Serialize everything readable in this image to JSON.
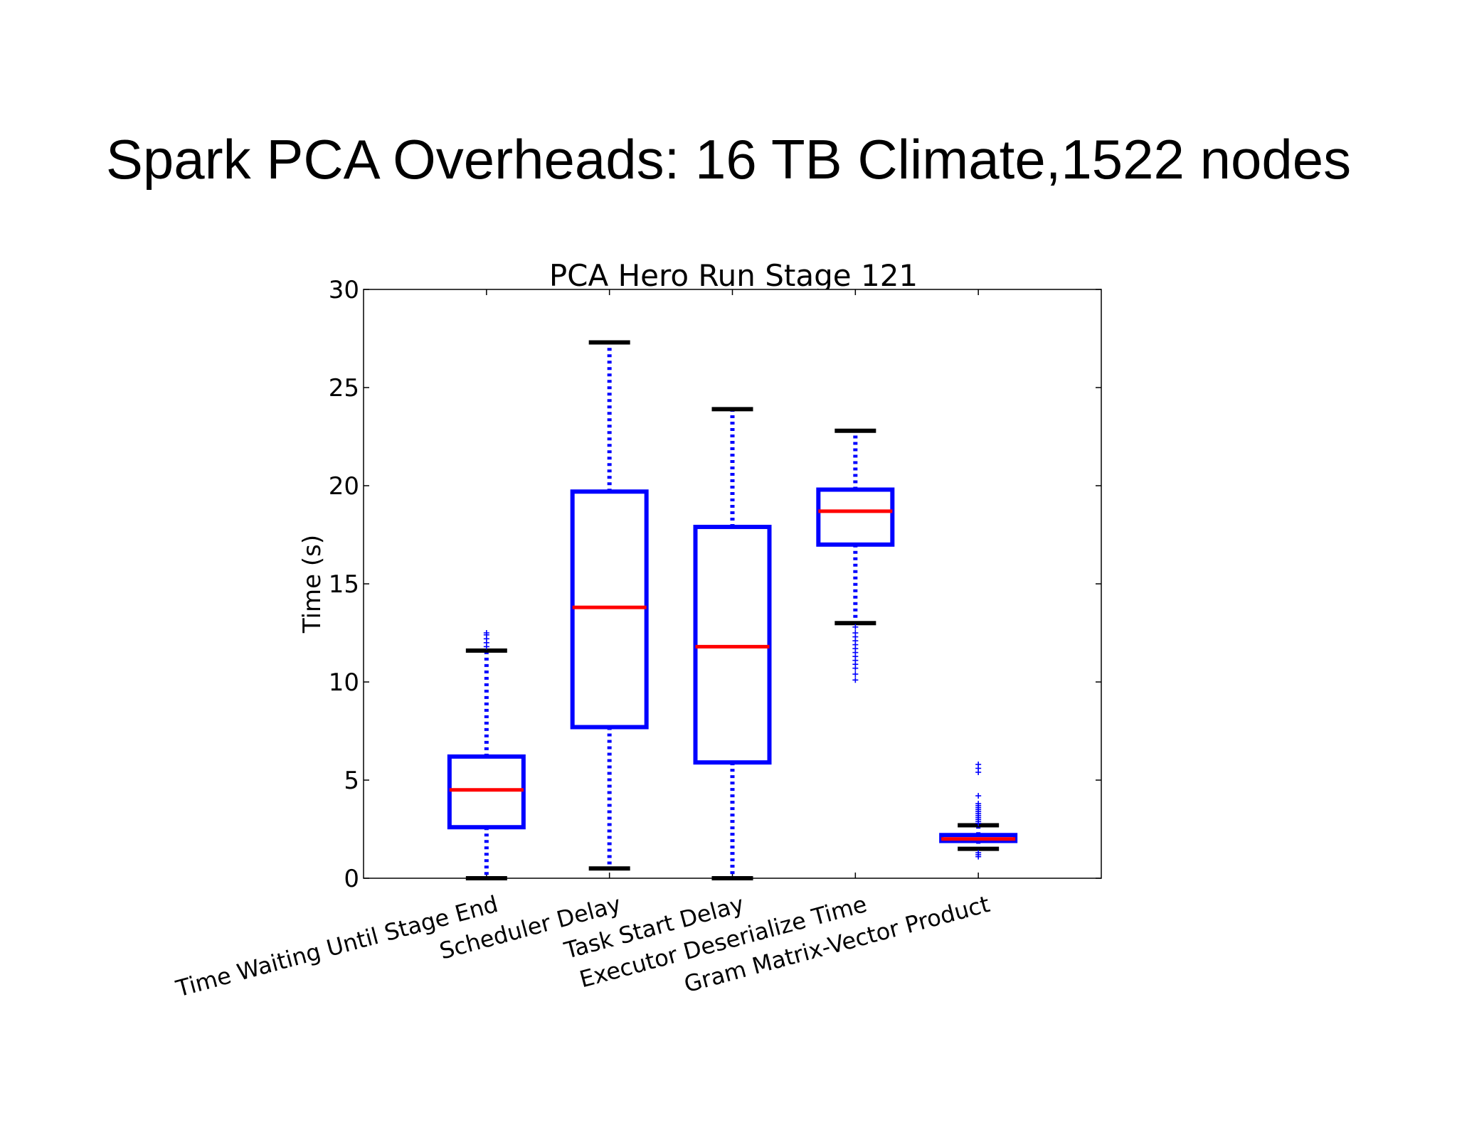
{
  "slide": {
    "title": "Spark PCA Overheads: 16 TB Climate,1522 nodes"
  },
  "chart_data": {
    "type": "box",
    "title": "PCA Hero Run Stage 121",
    "xlabel": "",
    "ylabel": "Time (s)",
    "ylim": [
      0,
      30
    ],
    "yticks": [
      0,
      5,
      10,
      15,
      20,
      25,
      30
    ],
    "categories": [
      "Time Waiting Until Stage End",
      "Scheduler Delay",
      "Task Start Delay",
      "Executor Deserialize Time",
      "Gram Matrix-Vector Product"
    ],
    "boxes": [
      {
        "whisker_low": 0.0,
        "q1": 2.6,
        "median": 4.5,
        "q3": 6.2,
        "whisker_high": 11.6,
        "outliers": [
          11.8,
          12.0,
          12.2,
          12.4,
          12.5
        ]
      },
      {
        "whisker_low": 0.5,
        "q1": 7.7,
        "median": 13.8,
        "q3": 19.7,
        "whisker_high": 27.3,
        "outliers": []
      },
      {
        "whisker_low": 0.0,
        "q1": 5.9,
        "median": 11.8,
        "q3": 17.9,
        "whisker_high": 23.9,
        "outliers": []
      },
      {
        "whisker_low": 13.0,
        "q1": 17.0,
        "median": 18.7,
        "q3": 19.8,
        "whisker_high": 22.8,
        "outliers": [
          12.8,
          12.5,
          12.3,
          12.1,
          11.9,
          11.7,
          11.5,
          11.3,
          11.1,
          10.9,
          10.7,
          10.4,
          10.1
        ]
      },
      {
        "whisker_low": 1.5,
        "q1": 1.9,
        "median": 2.0,
        "q3": 2.2,
        "whisker_high": 2.7,
        "outliers": [
          1.1,
          1.2,
          1.3,
          2.8,
          2.9,
          3.0,
          3.1,
          3.2,
          3.3,
          3.4,
          3.5,
          3.6,
          3.7,
          3.8,
          4.2,
          5.4,
          5.6,
          5.8
        ]
      }
    ],
    "colors": {
      "box": "#0000ff",
      "median": "#ff0000",
      "whisker_cap": "#000000",
      "outlier": "#0000ff"
    },
    "grid": false,
    "legend": "none"
  }
}
